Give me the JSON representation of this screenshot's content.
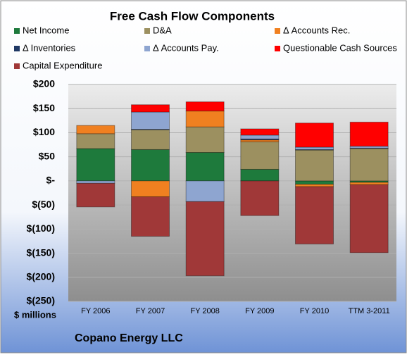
{
  "chart_data": {
    "type": "stacked_bar",
    "title": "Free Cash Flow Components",
    "ylabel": "$ millions",
    "footer": "Copano Energy LLC",
    "categories": [
      "FY 2006",
      "FY 2007",
      "FY 2008",
      "FY 2009",
      "FY 2010",
      "TTM 3-2011"
    ],
    "series": [
      {
        "name": "Net Income",
        "color": "#1e7a3c",
        "values": [
          67,
          65,
          59,
          24,
          -7,
          -3
        ]
      },
      {
        "name": "D&A",
        "color": "#9c9060",
        "values": [
          31,
          41,
          53,
          57,
          64,
          67
        ]
      },
      {
        "name": "Δ Accounts Rec.",
        "color": "#f08020",
        "values": [
          17,
          -33,
          33,
          4,
          -5,
          -5
        ]
      },
      {
        "name": "Δ Inventories",
        "color": "#1f3864",
        "values": [
          0,
          1,
          0,
          2,
          1,
          1
        ]
      },
      {
        "name": "Δ Accounts Pay.",
        "color": "#8ea5d0",
        "values": [
          -5,
          36,
          -43,
          8,
          5,
          4
        ]
      },
      {
        "name": "Questionable Cash Sources",
        "color": "#ff0000",
        "values": [
          0,
          15,
          19,
          13,
          50,
          50
        ]
      },
      {
        "name": "Capital Expenditure",
        "color": "#a03838",
        "values": [
          -49,
          -82,
          -154,
          -72,
          -119,
          -141
        ]
      }
    ],
    "ylim": [
      -250,
      200
    ],
    "yticks": [
      {
        "value": 200,
        "label": "$200"
      },
      {
        "value": 150,
        "label": "$150"
      },
      {
        "value": 100,
        "label": "$100"
      },
      {
        "value": 50,
        "label": "$50"
      },
      {
        "value": 0,
        "label": "$-"
      },
      {
        "value": -50,
        "label": "$(50)"
      },
      {
        "value": -100,
        "label": "$(100)"
      },
      {
        "value": -150,
        "label": "$(150)"
      },
      {
        "value": -200,
        "label": "$(200)"
      },
      {
        "value": -250,
        "label": "$(250)"
      }
    ],
    "grid": true
  }
}
